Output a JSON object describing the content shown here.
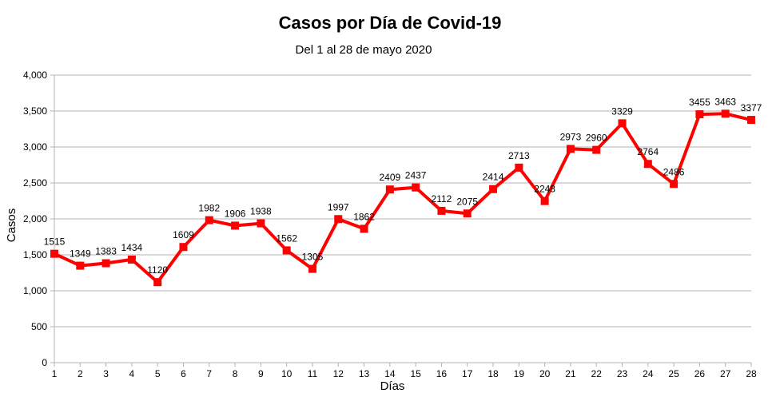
{
  "chart_data": {
    "type": "line",
    "title": "Casos por Día de Covid-19",
    "subtitle": "Del 1 al 28 de mayo 2020",
    "xlabel": "Días",
    "ylabel": "Casos",
    "ylim": [
      0,
      4000
    ],
    "ytick_step": 500,
    "ytick_labels": [
      "0",
      "500",
      "1,000",
      "1,500",
      "2,000",
      "2,500",
      "3,000",
      "3,500",
      "4,000"
    ],
    "grid": true,
    "legend": "none",
    "line_color": "#ff0000",
    "x": [
      1,
      2,
      3,
      4,
      5,
      6,
      7,
      8,
      9,
      10,
      11,
      12,
      13,
      14,
      15,
      16,
      17,
      18,
      19,
      20,
      21,
      22,
      23,
      24,
      25,
      26,
      27,
      28
    ],
    "values": [
      1515,
      1349,
      1383,
      1434,
      1120,
      1609,
      1982,
      1906,
      1938,
      1562,
      1305,
      1997,
      1862,
      2409,
      2437,
      2112,
      2075,
      2414,
      2713,
      2248,
      2973,
      2960,
      3329,
      2764,
      2486,
      3455,
      3463,
      3377
    ]
  }
}
